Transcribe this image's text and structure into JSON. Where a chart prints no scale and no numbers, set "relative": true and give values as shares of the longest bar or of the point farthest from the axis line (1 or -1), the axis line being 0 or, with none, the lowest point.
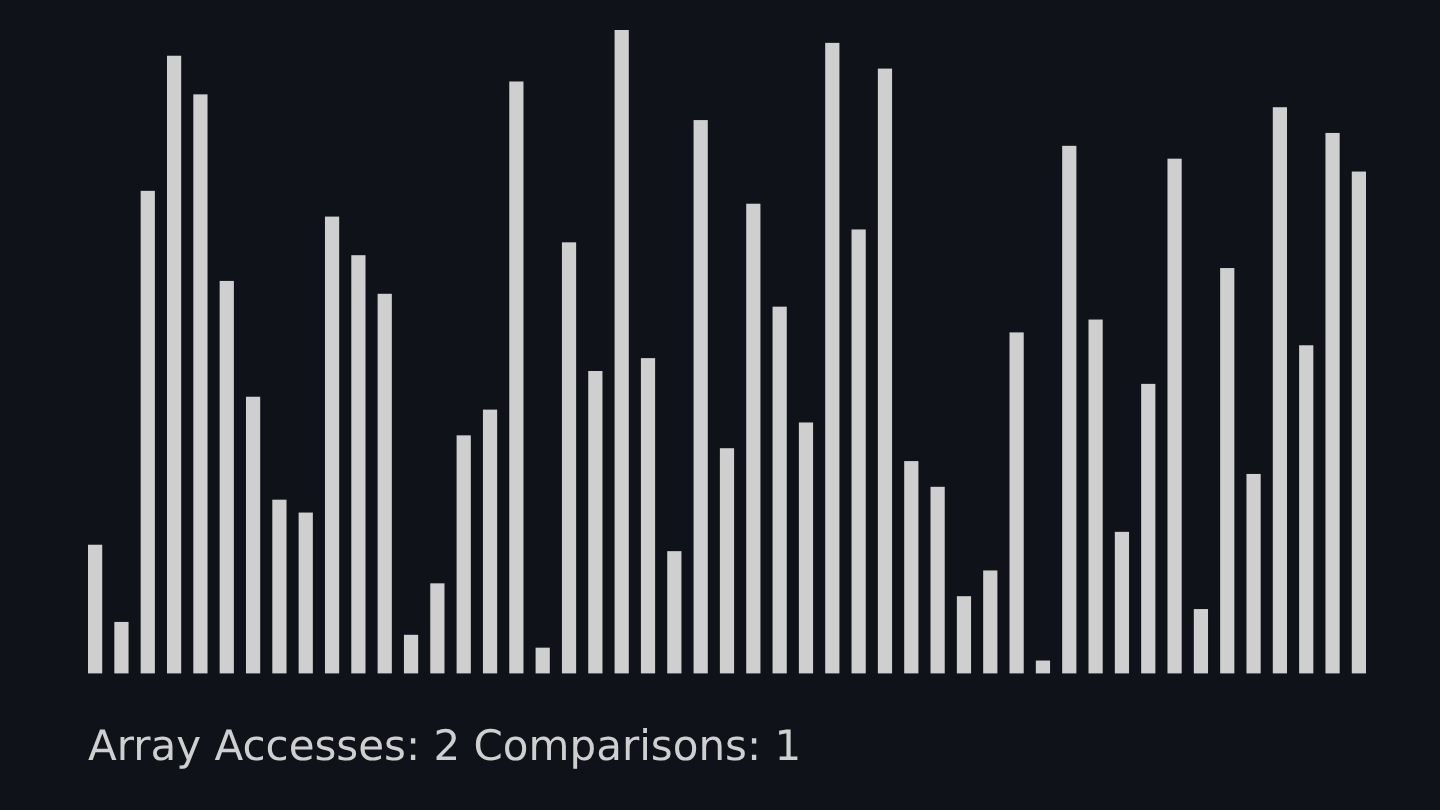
{
  "chart_data": {
    "type": "bar",
    "relative": true,
    "color": "#cfcfcf",
    "categories": [
      null,
      null,
      null,
      null,
      null,
      null,
      null,
      null,
      null,
      null,
      null,
      null,
      null,
      null,
      null,
      null,
      null,
      null,
      null,
      null,
      null,
      null,
      null,
      null,
      null,
      null,
      null,
      null,
      null,
      null,
      null,
      null,
      null,
      null,
      null,
      null,
      null,
      null,
      null,
      null,
      null,
      null,
      null,
      null,
      null,
      null,
      null,
      null,
      null
    ],
    "values": [
      0.2,
      0.08,
      0.75,
      0.96,
      0.9,
      0.61,
      0.43,
      0.27,
      0.25,
      0.71,
      0.65,
      0.59,
      0.06,
      0.14,
      0.37,
      0.41,
      0.92,
      0.04,
      0.67,
      0.47,
      1.0,
      0.49,
      0.19,
      0.86,
      0.35,
      0.73,
      0.57,
      0.39,
      0.98,
      0.69,
      0.94,
      0.33,
      0.29,
      0.12,
      0.16,
      0.53,
      0.02,
      0.82,
      0.55,
      0.22,
      0.45,
      0.8,
      0.1,
      0.63,
      0.31,
      0.88,
      0.51,
      0.84,
      0.78
    ],
    "annotations": [
      "Array Accesses: 2 Comparisons: 1"
    ]
  }
}
